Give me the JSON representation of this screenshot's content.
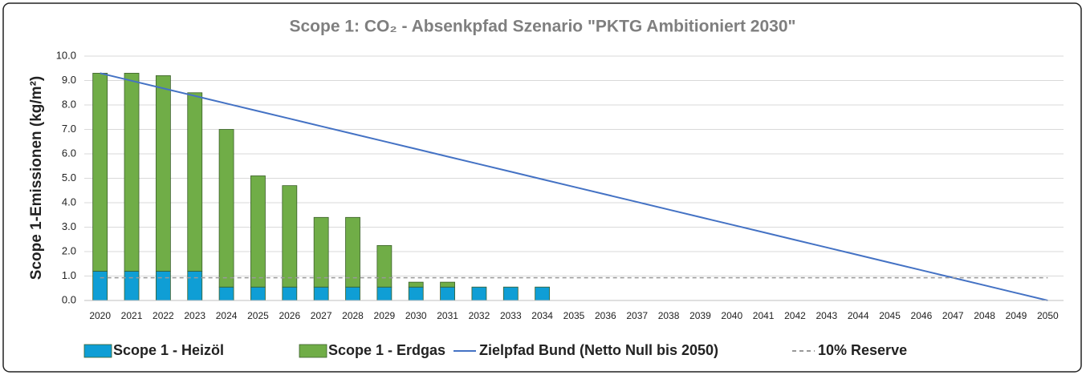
{
  "chart_data": {
    "type": "bar",
    "title": "Scope 1: CO₂ - Absenkpfad Szenario \"PKTG Ambitioniert 2030\"",
    "y_label": "Scope 1-Emissionen (kg/m²)",
    "categories": [
      "2020",
      "2021",
      "2022",
      "2023",
      "2024",
      "2025",
      "2026",
      "2027",
      "2028",
      "2029",
      "2030",
      "2031",
      "2032",
      "2033",
      "2034",
      "2035",
      "2036",
      "2037",
      "2038",
      "2039",
      "2040",
      "2041",
      "2042",
      "2043",
      "2044",
      "2045",
      "2046",
      "2047",
      "2048",
      "2049",
      "2050"
    ],
    "stacked": true,
    "series": [
      {
        "name": "Scope 1 - Heizöl",
        "type": "bar",
        "color": "#0f9ed5",
        "values": [
          1.2,
          1.2,
          1.2,
          1.2,
          0.55,
          0.55,
          0.55,
          0.55,
          0.55,
          0.55,
          0.55,
          0.55,
          0.55,
          0.55,
          0.55,
          null,
          null,
          null,
          null,
          null,
          null,
          null,
          null,
          null,
          null,
          null,
          null,
          null,
          null,
          null,
          null
        ]
      },
      {
        "name": "Scope 1 - Erdgas",
        "type": "bar",
        "color": "#70ad47",
        "values": [
          8.1,
          8.1,
          8.0,
          7.3,
          6.45,
          4.55,
          4.15,
          2.85,
          2.85,
          1.7,
          0.2,
          0.2,
          null,
          null,
          null,
          null,
          null,
          null,
          null,
          null,
          null,
          null,
          null,
          null,
          null,
          null,
          null,
          null,
          null,
          null,
          null
        ]
      },
      {
        "name": "Zielpfad Bund (Netto Null bis 2050)",
        "type": "line",
        "color": "#4472c4",
        "values": [
          9.3,
          8.99,
          8.68,
          8.37,
          8.06,
          7.75,
          7.44,
          7.13,
          6.82,
          6.51,
          6.2,
          5.89,
          5.58,
          5.27,
          4.96,
          4.65,
          4.34,
          4.03,
          3.72,
          3.41,
          3.1,
          2.79,
          2.48,
          2.17,
          1.86,
          1.55,
          1.24,
          0.93,
          0.62,
          0.31,
          0
        ]
      },
      {
        "name": "10% Reserve",
        "type": "line",
        "style": "dashed",
        "color": "#999999",
        "values": [
          0.93,
          0.93,
          0.93,
          0.93,
          0.93,
          0.93,
          0.93,
          0.93,
          0.93,
          0.93,
          0.93,
          0.93,
          0.93,
          0.93,
          0.93,
          0.93,
          0.93,
          0.93,
          0.93,
          0.93,
          0.93,
          0.93,
          0.93,
          0.93,
          0.93,
          0.93,
          0.93,
          0.93,
          0.93,
          0.93,
          0.93
        ]
      }
    ],
    "ylim": [
      0,
      10
    ],
    "yticks": [
      {
        "value": 0,
        "label": "0.0"
      },
      {
        "value": 1,
        "label": "1.0"
      },
      {
        "value": 2,
        "label": "2.0"
      },
      {
        "value": 3,
        "label": "3.0"
      },
      {
        "value": 4,
        "label": "4.0"
      },
      {
        "value": 5,
        "label": "5.0"
      },
      {
        "value": 6,
        "label": "6.0"
      },
      {
        "value": 7,
        "label": "7.0"
      },
      {
        "value": 8,
        "label": "8.0"
      },
      {
        "value": 9,
        "label": "9.0"
      },
      {
        "value": 10,
        "label": "10.0"
      }
    ],
    "grid": true,
    "legend": "bottom"
  }
}
